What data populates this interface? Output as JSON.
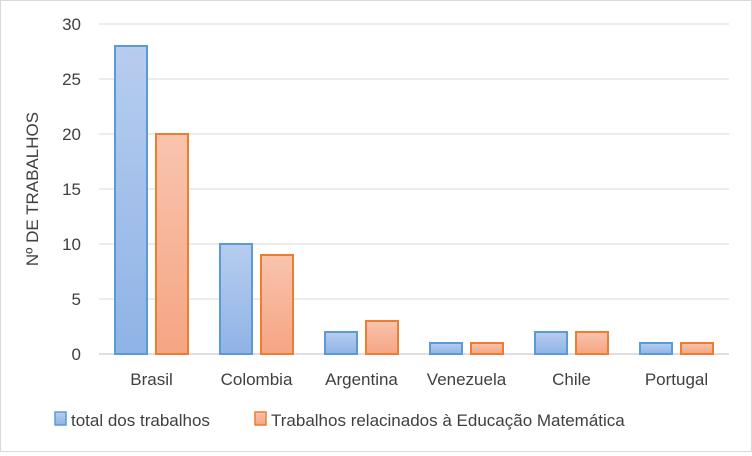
{
  "chart_data": {
    "type": "bar",
    "categories": [
      "Brasil",
      "Colombia",
      "Argentina",
      "Venezuela",
      "Chile",
      "Portugal"
    ],
    "series": [
      {
        "name": "total dos trabalhos",
        "values": [
          28,
          10,
          2,
          1,
          2,
          1
        ],
        "color": "#8fb4e3"
      },
      {
        "name": "Trabalhos relacinados à Educação Matemática",
        "values": [
          20,
          9,
          3,
          1,
          2,
          1
        ],
        "color": "#f4a582"
      }
    ],
    "title": "",
    "xlabel": "",
    "ylabel": "Nº DE TRABALHOS",
    "ylim": [
      0,
      30
    ],
    "yticks": [
      0,
      5,
      10,
      15,
      20,
      25,
      30
    ],
    "grid": true,
    "legend": "bottom",
    "colors": {
      "series1_fill": "#a9c4eb",
      "series1_stroke": "#5b9bd5",
      "series2_fill": "#f8b9a0",
      "series2_stroke": "#ed7d31",
      "grid": "#d9d9d9",
      "axis": "#bfbfbf"
    }
  }
}
